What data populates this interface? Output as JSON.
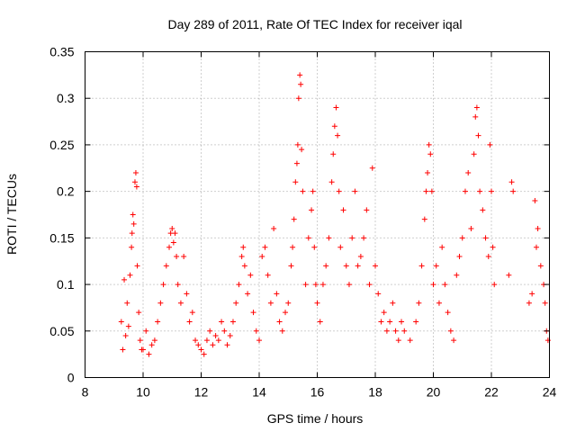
{
  "chart_data": {
    "type": "scatter",
    "title": "Day 289 of 2011, Rate Of TEC Index for receiver iqal",
    "xlabel": "GPS time / hours",
    "ylabel": "ROTI / TECUs",
    "xlim": [
      8,
      24
    ],
    "ylim": [
      0,
      0.35
    ],
    "xticks": [
      "8",
      "10",
      "12",
      "14",
      "16",
      "18",
      "20",
      "22",
      "24"
    ],
    "yticks": [
      "0",
      "0.05",
      "0.1",
      "0.15",
      "0.2",
      "0.25",
      "0.3",
      "0.35"
    ],
    "grid": true,
    "legend": "none",
    "marker": "plus",
    "color": "#ff0000",
    "series": [
      {
        "values": [
          [
            9.25,
            0.06
          ],
          [
            9.3,
            0.03
          ],
          [
            9.35,
            0.105
          ],
          [
            9.4,
            0.045
          ],
          [
            9.45,
            0.08
          ],
          [
            9.5,
            0.055
          ],
          [
            9.55,
            0.11
          ],
          [
            9.6,
            0.14
          ],
          [
            9.62,
            0.155
          ],
          [
            9.65,
            0.175
          ],
          [
            9.68,
            0.165
          ],
          [
            9.72,
            0.21
          ],
          [
            9.75,
            0.22
          ],
          [
            9.78,
            0.205
          ],
          [
            9.8,
            0.12
          ],
          [
            9.85,
            0.07
          ],
          [
            9.9,
            0.04
          ],
          [
            9.95,
            0.03
          ],
          [
            10.0,
            0.03
          ],
          [
            10.1,
            0.05
          ],
          [
            10.2,
            0.025
          ],
          [
            10.3,
            0.035
          ],
          [
            10.4,
            0.04
          ],
          [
            10.5,
            0.06
          ],
          [
            10.6,
            0.08
          ],
          [
            10.7,
            0.1
          ],
          [
            10.8,
            0.12
          ],
          [
            10.9,
            0.14
          ],
          [
            10.95,
            0.155
          ],
          [
            11.0,
            0.16
          ],
          [
            11.05,
            0.145
          ],
          [
            11.1,
            0.155
          ],
          [
            11.15,
            0.13
          ],
          [
            11.2,
            0.1
          ],
          [
            11.3,
            0.08
          ],
          [
            11.4,
            0.13
          ],
          [
            11.5,
            0.09
          ],
          [
            11.6,
            0.06
          ],
          [
            11.7,
            0.07
          ],
          [
            11.8,
            0.04
          ],
          [
            11.9,
            0.035
          ],
          [
            12.0,
            0.03
          ],
          [
            12.1,
            0.025
          ],
          [
            12.2,
            0.04
          ],
          [
            12.3,
            0.05
          ],
          [
            12.4,
            0.035
          ],
          [
            12.5,
            0.045
          ],
          [
            12.6,
            0.04
          ],
          [
            12.7,
            0.06
          ],
          [
            12.8,
            0.05
          ],
          [
            12.9,
            0.035
          ],
          [
            13.0,
            0.045
          ],
          [
            13.1,
            0.06
          ],
          [
            13.2,
            0.08
          ],
          [
            13.3,
            0.1
          ],
          [
            13.4,
            0.13
          ],
          [
            13.45,
            0.14
          ],
          [
            13.5,
            0.12
          ],
          [
            13.6,
            0.09
          ],
          [
            13.7,
            0.11
          ],
          [
            13.8,
            0.07
          ],
          [
            13.9,
            0.05
          ],
          [
            14.0,
            0.04
          ],
          [
            14.1,
            0.13
          ],
          [
            14.2,
            0.14
          ],
          [
            14.3,
            0.11
          ],
          [
            14.4,
            0.08
          ],
          [
            14.5,
            0.16
          ],
          [
            14.6,
            0.09
          ],
          [
            14.7,
            0.06
          ],
          [
            14.8,
            0.05
          ],
          [
            14.9,
            0.07
          ],
          [
            15.0,
            0.08
          ],
          [
            15.1,
            0.12
          ],
          [
            15.15,
            0.14
          ],
          [
            15.2,
            0.17
          ],
          [
            15.25,
            0.21
          ],
          [
            15.3,
            0.23
          ],
          [
            15.33,
            0.25
          ],
          [
            15.36,
            0.3
          ],
          [
            15.4,
            0.325
          ],
          [
            15.43,
            0.315
          ],
          [
            15.46,
            0.245
          ],
          [
            15.5,
            0.2
          ],
          [
            15.6,
            0.1
          ],
          [
            15.7,
            0.15
          ],
          [
            15.8,
            0.18
          ],
          [
            15.85,
            0.2
          ],
          [
            15.9,
            0.14
          ],
          [
            15.95,
            0.1
          ],
          [
            16.0,
            0.08
          ],
          [
            16.1,
            0.06
          ],
          [
            16.2,
            0.1
          ],
          [
            16.3,
            0.12
          ],
          [
            16.4,
            0.15
          ],
          [
            16.5,
            0.21
          ],
          [
            16.55,
            0.24
          ],
          [
            16.6,
            0.27
          ],
          [
            16.65,
            0.29
          ],
          [
            16.7,
            0.26
          ],
          [
            16.75,
            0.2
          ],
          [
            16.8,
            0.14
          ],
          [
            16.9,
            0.18
          ],
          [
            17.0,
            0.12
          ],
          [
            17.1,
            0.1
          ],
          [
            17.2,
            0.15
          ],
          [
            17.3,
            0.2
          ],
          [
            17.4,
            0.12
          ],
          [
            17.5,
            0.13
          ],
          [
            17.6,
            0.15
          ],
          [
            17.7,
            0.18
          ],
          [
            17.8,
            0.1
          ],
          [
            17.9,
            0.225
          ],
          [
            18.0,
            0.12
          ],
          [
            18.1,
            0.09
          ],
          [
            18.2,
            0.06
          ],
          [
            18.3,
            0.07
          ],
          [
            18.4,
            0.05
          ],
          [
            18.5,
            0.06
          ],
          [
            18.6,
            0.08
          ],
          [
            18.7,
            0.05
          ],
          [
            18.8,
            0.04
          ],
          [
            18.9,
            0.06
          ],
          [
            19.0,
            0.05
          ],
          [
            19.2,
            0.04
          ],
          [
            19.4,
            0.06
          ],
          [
            19.5,
            0.08
          ],
          [
            19.6,
            0.12
          ],
          [
            19.7,
            0.17
          ],
          [
            19.75,
            0.2
          ],
          [
            19.8,
            0.22
          ],
          [
            19.85,
            0.25
          ],
          [
            19.9,
            0.24
          ],
          [
            19.95,
            0.2
          ],
          [
            20.0,
            0.1
          ],
          [
            20.1,
            0.12
          ],
          [
            20.2,
            0.08
          ],
          [
            20.3,
            0.14
          ],
          [
            20.4,
            0.1
          ],
          [
            20.5,
            0.07
          ],
          [
            20.6,
            0.05
          ],
          [
            20.7,
            0.04
          ],
          [
            20.8,
            0.11
          ],
          [
            20.9,
            0.13
          ],
          [
            21.0,
            0.15
          ],
          [
            21.1,
            0.2
          ],
          [
            21.2,
            0.22
          ],
          [
            21.3,
            0.16
          ],
          [
            21.4,
            0.24
          ],
          [
            21.45,
            0.28
          ],
          [
            21.5,
            0.29
          ],
          [
            21.55,
            0.26
          ],
          [
            21.6,
            0.2
          ],
          [
            21.7,
            0.18
          ],
          [
            21.8,
            0.15
          ],
          [
            21.9,
            0.13
          ],
          [
            21.95,
            0.25
          ],
          [
            22.0,
            0.2
          ],
          [
            22.05,
            0.14
          ],
          [
            22.1,
            0.1
          ],
          [
            22.6,
            0.11
          ],
          [
            22.7,
            0.21
          ],
          [
            22.75,
            0.2
          ],
          [
            23.3,
            0.08
          ],
          [
            23.4,
            0.09
          ],
          [
            23.5,
            0.19
          ],
          [
            23.55,
            0.14
          ],
          [
            23.6,
            0.16
          ],
          [
            23.7,
            0.12
          ],
          [
            23.8,
            0.1
          ],
          [
            23.85,
            0.08
          ],
          [
            23.9,
            0.05
          ],
          [
            23.95,
            0.04
          ]
        ]
      }
    ]
  }
}
